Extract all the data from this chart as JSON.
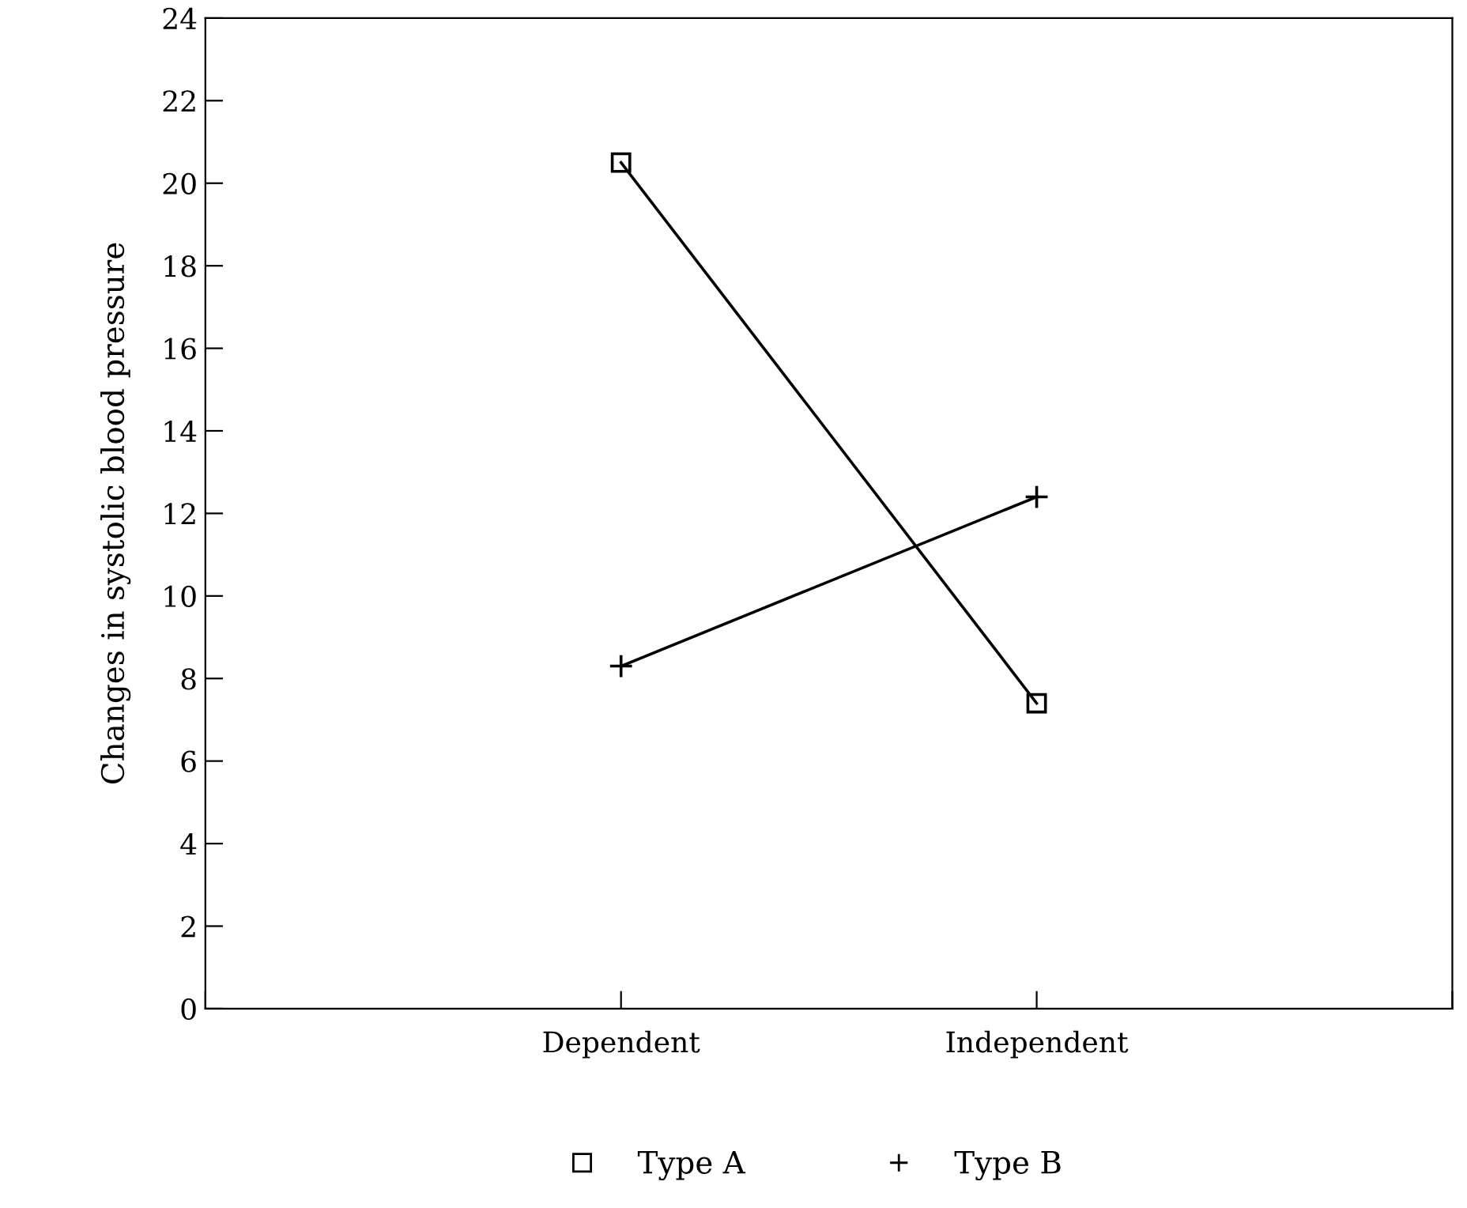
{
  "chart_data": {
    "type": "line",
    "ylabel": "Changes in systolic blood pressure",
    "categories": [
      "Dependent",
      "Independent"
    ],
    "series": [
      {
        "name": "Type A",
        "color": "#000000",
        "values": [
          20.5,
          7.4
        ],
        "marker": "square"
      },
      {
        "name": "Type B",
        "color": "#000000",
        "values": [
          8.3,
          12.4
        ],
        "marker": "cross"
      }
    ],
    "ylim": [
      0,
      24
    ],
    "yticks": [
      0,
      2,
      4,
      6,
      8,
      10,
      12,
      14,
      16,
      18,
      20,
      22,
      24
    ],
    "grid": false,
    "legend": "bottom",
    "line_style": "solid"
  }
}
